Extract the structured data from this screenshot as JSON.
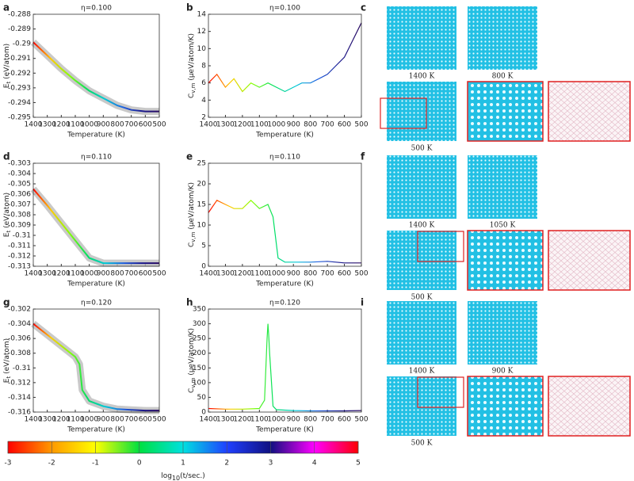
{
  "chart_data": [
    {
      "type": "line",
      "panel": "a",
      "title": "η=0.100",
      "xlabel": "Temperature (K)",
      "ylabel": {
        "main": "E",
        "sub": "t",
        "unit": " (eV/atom)"
      },
      "x": [
        1400,
        1300,
        1200,
        1100,
        1000,
        900,
        800,
        700,
        600,
        500
      ],
      "series": [
        {
          "values": [
            -0.2899,
            -0.2908,
            -0.2917,
            -0.2925,
            -0.2932,
            -0.2937,
            -0.2942,
            -0.2945,
            -0.2946,
            -0.2946
          ],
          "halo": "#bbbbbb",
          "colors": [
            "#ff0000",
            "#ffcc00",
            "#88ff00",
            "#00e060",
            "#00c8d8",
            "#2060e0",
            "#1a1a90",
            "#2a0a60"
          ]
        }
      ],
      "xlim": [
        1400,
        500
      ],
      "xticks": [
        1400,
        1300,
        1200,
        1100,
        1000,
        900,
        800,
        700,
        600,
        500
      ],
      "ylim": [
        -0.295,
        -0.288
      ],
      "yticks": [
        -0.288,
        -0.289,
        -0.29,
        -0.291,
        -0.292,
        -0.293,
        -0.294,
        -0.295
      ]
    },
    {
      "type": "line",
      "panel": "b",
      "title": "η=0.100",
      "xlabel": "Temperature (K)",
      "ylabel": {
        "main": "C",
        "sub": "v,m",
        "unit": " (μeV/atom/K)"
      },
      "x": [
        1400,
        1350,
        1300,
        1250,
        1200,
        1150,
        1100,
        1050,
        1000,
        950,
        900,
        850,
        800,
        750,
        700,
        650,
        600,
        550,
        500
      ],
      "series": [
        {
          "values": [
            6,
            7,
            5.5,
            6.5,
            5,
            6,
            5.5,
            6,
            5.5,
            5,
            5.5,
            6,
            6,
            6.5,
            7,
            8,
            9,
            11,
            13
          ],
          "colors": [
            "#ff0000",
            "#ffcc00",
            "#88ff00",
            "#00e060",
            "#00c8d8",
            "#2060e0",
            "#1a1a90",
            "#2a0a60"
          ]
        }
      ],
      "xlim": [
        1400,
        500
      ],
      "xticks": [
        1400,
        1300,
        1200,
        1100,
        1000,
        900,
        800,
        700,
        600,
        500
      ],
      "ylim": [
        2,
        14
      ],
      "yticks": [
        2,
        4,
        6,
        8,
        10,
        12,
        14
      ]
    },
    {
      "type": "line",
      "panel": "d",
      "title": "η=0.110",
      "xlabel": "Temperature (K)",
      "ylabel": {
        "main": "E",
        "sub": "t",
        "unit": " (eV/atom)"
      },
      "x": [
        1400,
        1300,
        1200,
        1100,
        1000,
        900,
        800,
        700,
        600,
        500
      ],
      "series": [
        {
          "values": [
            -0.3055,
            -0.3071,
            -0.3088,
            -0.3105,
            -0.3122,
            -0.3127,
            -0.3127,
            -0.3127,
            -0.3127,
            -0.3127
          ],
          "halo": "#bbbbbb",
          "colors": [
            "#ff0000",
            "#ffcc00",
            "#88ff00",
            "#00e060",
            "#00c8d8",
            "#2060e0",
            "#1a1a90",
            "#2a0a60"
          ]
        }
      ],
      "xlim": [
        1400,
        500
      ],
      "xticks": [
        1400,
        1300,
        1200,
        1100,
        1000,
        900,
        800,
        700,
        600,
        500
      ],
      "ylim": [
        -0.313,
        -0.303
      ],
      "yticks": [
        -0.303,
        -0.304,
        -0.305,
        -0.306,
        -0.307,
        -0.308,
        -0.309,
        -0.31,
        -0.311,
        -0.312,
        -0.313
      ]
    },
    {
      "type": "line",
      "panel": "e",
      "title": "η=0.110",
      "xlabel": "Temperature (K)",
      "ylabel": {
        "main": "C",
        "sub": "v,m",
        "unit": " (μeV/atom/K)"
      },
      "x": [
        1400,
        1350,
        1300,
        1250,
        1200,
        1150,
        1100,
        1050,
        1020,
        990,
        950,
        900,
        800,
        700,
        600,
        500
      ],
      "series": [
        {
          "values": [
            13,
            16,
            15,
            14,
            14,
            16,
            14,
            15,
            12,
            2,
            1,
            1,
            1,
            1.2,
            0.8,
            0.8
          ],
          "colors": [
            "#ff0000",
            "#ffcc00",
            "#88ff00",
            "#00e060",
            "#00c8d8",
            "#2060e0",
            "#1a1a90",
            "#2a0a60"
          ]
        }
      ],
      "xlim": [
        1400,
        500
      ],
      "xticks": [
        1400,
        1300,
        1200,
        1100,
        1000,
        900,
        800,
        700,
        600,
        500
      ],
      "ylim": [
        0,
        25
      ],
      "yticks": [
        0,
        5,
        10,
        15,
        20,
        25
      ]
    },
    {
      "type": "line",
      "panel": "g",
      "title": "η=0.120",
      "xlabel": "Temperature (K)",
      "ylabel": {
        "main": "E",
        "sub": "t",
        "unit": " (eV/atom)"
      },
      "x": [
        1400,
        1300,
        1200,
        1100,
        1070,
        1050,
        1000,
        900,
        800,
        700,
        600,
        500
      ],
      "series": [
        {
          "values": [
            -0.304,
            -0.3055,
            -0.307,
            -0.3085,
            -0.3095,
            -0.313,
            -0.3145,
            -0.3152,
            -0.3156,
            -0.3157,
            -0.3158,
            -0.3158
          ],
          "halo": "#bbbbbb",
          "colors": [
            "#ff0000",
            "#ffcc00",
            "#88ff00",
            "#00e060",
            "#00c8d8",
            "#2060e0",
            "#1a1a90",
            "#2a0a60"
          ]
        }
      ],
      "xlim": [
        1400,
        500
      ],
      "xticks": [
        1400,
        1300,
        1200,
        1100,
        1000,
        900,
        800,
        700,
        600,
        500
      ],
      "ylim": [
        -0.316,
        -0.302
      ],
      "yticks": [
        -0.302,
        -0.304,
        -0.306,
        -0.308,
        -0.31,
        -0.312,
        -0.314,
        -0.316
      ]
    },
    {
      "type": "line",
      "panel": "h",
      "title": "η=0.120",
      "xlabel": "Temperature (K)",
      "ylabel": {
        "main": "C",
        "sub": "v,m",
        "unit": " (μeV/atom/K)"
      },
      "x": [
        1400,
        1300,
        1200,
        1100,
        1070,
        1055,
        1050,
        1045,
        1040,
        1020,
        1000,
        900,
        800,
        700,
        600,
        500
      ],
      "series": [
        {
          "values": [
            12,
            10,
            10,
            12,
            40,
            250,
            300,
            260,
            200,
            20,
            8,
            5,
            4,
            4,
            4,
            5
          ],
          "colors": [
            "#ff0000",
            "#ffcc00",
            "#88ff00",
            "#00e060",
            "#00c8d8",
            "#2060e0",
            "#1a1a90",
            "#2a0a60"
          ]
        }
      ],
      "xlim": [
        1400,
        500
      ],
      "xticks": [
        1400,
        1300,
        1200,
        1100,
        1000,
        900,
        800,
        700,
        600,
        500
      ],
      "ylim": [
        0,
        350
      ],
      "yticks": [
        0,
        50,
        100,
        150,
        200,
        250,
        300,
        350
      ]
    }
  ],
  "colorbar": {
    "ticks": [
      -3,
      -2,
      -1,
      0,
      1,
      2,
      3,
      4,
      5
    ],
    "colors": [
      "#ff0000",
      "#ff9900",
      "#ffff00",
      "#00e040",
      "#00e0e0",
      "#2040ff",
      "#101080",
      "#ff00ff",
      "#ff0000"
    ],
    "label": {
      "pre": "log",
      "sub": "10",
      "post": "(t/sec.)"
    }
  },
  "snapshots": [
    {
      "panel": "c",
      "captions": [
        "1400 K",
        "800 K",
        "500 K"
      ]
    },
    {
      "panel": "f",
      "captions": [
        "1400 K",
        "1050 K",
        "500 K"
      ]
    },
    {
      "panel": "i",
      "captions": [
        "1400 K",
        "900 K",
        "500 K"
      ]
    }
  ]
}
